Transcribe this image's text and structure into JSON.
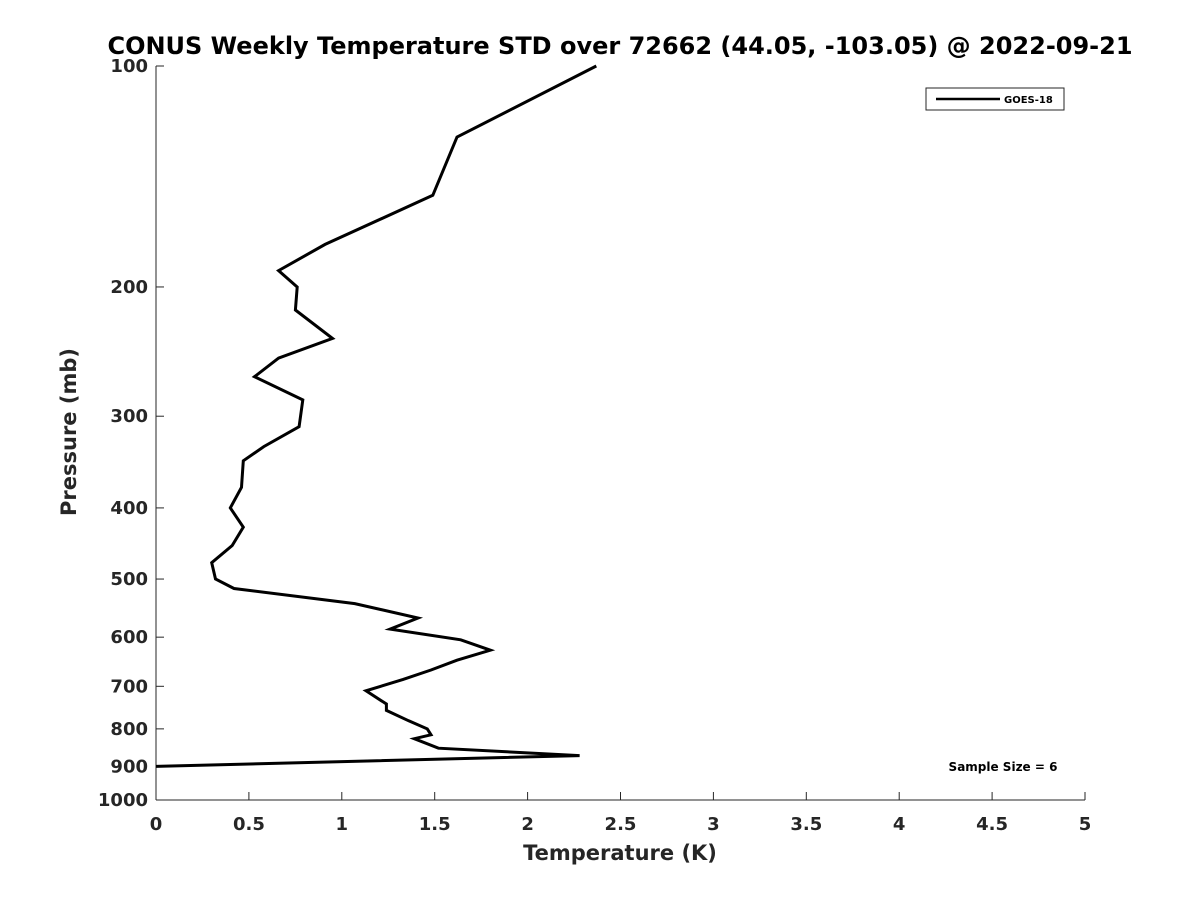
{
  "chart_data": {
    "type": "line",
    "title": "CONUS Weekly Temperature STD over 72662 (44.05, -103.05) @ 2022-09-21",
    "xlabel": "Temperature (K)",
    "ylabel": "Pressure (mb)",
    "xlim": [
      0,
      5
    ],
    "ylim": [
      1000,
      100
    ],
    "yscale": "log",
    "y_reversed": true,
    "x_ticks": [
      "0",
      "0.5",
      "1",
      "1.5",
      "2",
      "2.5",
      "3",
      "3.5",
      "4",
      "4.5",
      "5"
    ],
    "y_ticks": [
      "100",
      "200",
      "300",
      "400",
      "500",
      "600",
      "700",
      "800",
      "900",
      "1000"
    ],
    "grid": false,
    "legend_position": "top-right",
    "series": [
      {
        "name": "GOES-18",
        "color": "#000000",
        "points": [
          {
            "x": 2.37,
            "p": 100
          },
          {
            "x": 1.62,
            "p": 125
          },
          {
            "x": 1.49,
            "p": 150
          },
          {
            "x": 0.91,
            "p": 175
          },
          {
            "x": 0.66,
            "p": 190
          },
          {
            "x": 0.76,
            "p": 200
          },
          {
            "x": 0.75,
            "p": 215
          },
          {
            "x": 0.95,
            "p": 235
          },
          {
            "x": 0.66,
            "p": 250
          },
          {
            "x": 0.53,
            "p": 265
          },
          {
            "x": 0.79,
            "p": 285
          },
          {
            "x": 0.77,
            "p": 310
          },
          {
            "x": 0.58,
            "p": 330
          },
          {
            "x": 0.47,
            "p": 345
          },
          {
            "x": 0.46,
            "p": 375
          },
          {
            "x": 0.4,
            "p": 400
          },
          {
            "x": 0.47,
            "p": 425
          },
          {
            "x": 0.41,
            "p": 450
          },
          {
            "x": 0.3,
            "p": 475
          },
          {
            "x": 0.32,
            "p": 500
          },
          {
            "x": 0.42,
            "p": 515
          },
          {
            "x": 1.07,
            "p": 540
          },
          {
            "x": 1.41,
            "p": 565
          },
          {
            "x": 1.26,
            "p": 585
          },
          {
            "x": 1.64,
            "p": 605
          },
          {
            "x": 1.8,
            "p": 625
          },
          {
            "x": 1.62,
            "p": 645
          },
          {
            "x": 1.48,
            "p": 665
          },
          {
            "x": 1.33,
            "p": 685
          },
          {
            "x": 1.13,
            "p": 710
          },
          {
            "x": 1.24,
            "p": 740
          },
          {
            "x": 1.24,
            "p": 755
          },
          {
            "x": 1.36,
            "p": 780
          },
          {
            "x": 1.46,
            "p": 800
          },
          {
            "x": 1.48,
            "p": 815
          },
          {
            "x": 1.39,
            "p": 825
          },
          {
            "x": 1.52,
            "p": 850
          },
          {
            "x": 2.28,
            "p": 870
          },
          {
            "x": 0.0,
            "p": 900
          }
        ]
      }
    ],
    "annotations": [
      {
        "text": "Sample Size = 6",
        "position": "bottom-right"
      }
    ]
  }
}
